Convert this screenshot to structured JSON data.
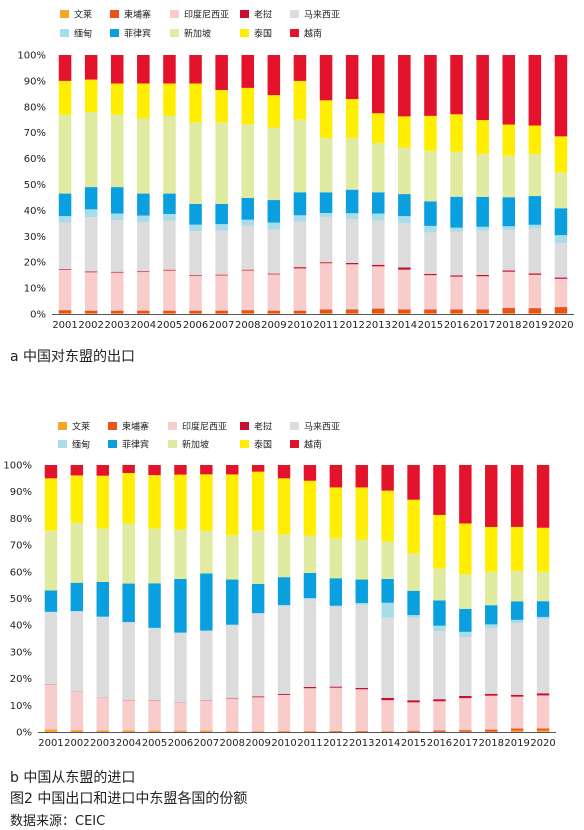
{
  "chart_data": [
    {
      "type": "bar",
      "stacked": true,
      "caption": "a 中国对东盟的出口",
      "categories": [
        "2001",
        "2002",
        "2003",
        "2004",
        "2005",
        "2006",
        "2007",
        "2008",
        "2009",
        "2010",
        "2011",
        "2012",
        "2013",
        "2014",
        "2015",
        "2016",
        "2017",
        "2018",
        "2019",
        "2020"
      ],
      "yticks": [
        "0%",
        "10%",
        "20%",
        "30%",
        "40%",
        "50%",
        "60%",
        "70%",
        "80%",
        "90%",
        "100%"
      ],
      "ylim": [
        0,
        100
      ],
      "legend_position": "top",
      "series": [
        {
          "name": "文莱",
          "color": "#f5a623",
          "values": [
            0.3,
            0.3,
            0.3,
            0.3,
            0.3,
            0.3,
            0.3,
            0.3,
            0.3,
            0.3,
            0.3,
            0.3,
            0.3,
            0.3,
            0.3,
            0.3,
            0.3,
            0.3,
            0.3,
            0.3
          ]
        },
        {
          "name": "柬埔寨",
          "color": "#e8531c",
          "values": [
            1.2,
            1.0,
            1.0,
            1.0,
            1.0,
            1.0,
            1.0,
            1.2,
            1.0,
            1.0,
            1.5,
            1.5,
            1.8,
            1.5,
            1.5,
            1.5,
            1.5,
            2.0,
            2.0,
            2.4
          ]
        },
        {
          "name": "印度尼西亚",
          "color": "#f9cccc",
          "values": [
            15.5,
            14.8,
            14.7,
            14.9,
            15.5,
            13.4,
            13.6,
            15.3,
            14.0,
            16.3,
            17.8,
            17.4,
            16.3,
            15.3,
            13.2,
            12.7,
            12.7,
            14.0,
            13.0,
            11.0
          ]
        },
        {
          "name": "老挝",
          "color": "#c8102e",
          "values": [
            0.3,
            0.3,
            0.3,
            0.3,
            0.3,
            0.3,
            0.3,
            0.3,
            0.3,
            0.5,
            0.4,
            0.5,
            0.6,
            0.9,
            0.5,
            0.5,
            0.5,
            0.5,
            0.5,
            0.5
          ]
        },
        {
          "name": "马来西亚",
          "color": "#dcdcdc",
          "values": [
            18.0,
            21.0,
            20.0,
            19.0,
            19.0,
            17.0,
            17.0,
            17.0,
            17.0,
            17.5,
            17.5,
            17.0,
            17.0,
            17.0,
            16.0,
            17.0,
            17.0,
            15.5,
            17.5,
            13.5
          ]
        },
        {
          "name": "缅甸",
          "color": "#a8dce8",
          "values": [
            2.5,
            3.0,
            2.5,
            2.5,
            2.5,
            2.5,
            2.5,
            2.3,
            2.7,
            2.5,
            1.5,
            2.2,
            2.8,
            2.8,
            2.5,
            1.5,
            1.5,
            1.5,
            1.5,
            3.0
          ]
        },
        {
          "name": "菲律宾",
          "color": "#0aa0e0",
          "values": [
            8.7,
            8.6,
            10.2,
            8.5,
            7.9,
            8.0,
            7.8,
            8.4,
            8.7,
            8.9,
            8.0,
            9.1,
            8.2,
            8.5,
            9.5,
            12.0,
            11.5,
            11.2,
            11.2,
            10.5
          ]
        },
        {
          "name": "新加坡",
          "color": "#e0eaa0",
          "values": [
            30.5,
            29.0,
            28.0,
            29.0,
            30.0,
            31.5,
            31.5,
            28.5,
            28.0,
            28.0,
            21.0,
            20.0,
            19.0,
            18.0,
            19.5,
            17.5,
            16.5,
            16.0,
            16.5,
            14.0
          ]
        },
        {
          "name": "泰国",
          "color": "#ffee00",
          "values": [
            13.0,
            12.5,
            12.0,
            13.5,
            12.5,
            15.0,
            12.5,
            14.0,
            12.5,
            15.0,
            14.5,
            15.0,
            11.5,
            12.0,
            13.5,
            14.5,
            13.0,
            12.0,
            11.0,
            14.0
          ]
        },
        {
          "name": "越南",
          "color": "#e2132a",
          "values": [
            10.0,
            9.5,
            11.0,
            11.0,
            11.0,
            11.0,
            13.5,
            12.7,
            15.5,
            10.0,
            17.5,
            17.0,
            22.5,
            23.7,
            23.5,
            23.0,
            25.0,
            26.8,
            27.5,
            31.7
          ]
        }
      ]
    },
    {
      "type": "bar",
      "stacked": true,
      "caption": "b 中国从东盟的进口",
      "categories": [
        "2001",
        "2002",
        "2003",
        "2004",
        "2005",
        "2006",
        "2007",
        "2008",
        "2009",
        "2010",
        "2011",
        "2012",
        "2013",
        "2014",
        "2015",
        "2016",
        "2017",
        "2018",
        "2019",
        "2020"
      ],
      "yticks": [
        "0%",
        "10%",
        "20%",
        "30%",
        "40%",
        "50%",
        "60%",
        "70%",
        "80%",
        "90%",
        "100%"
      ],
      "ylim": [
        0,
        100
      ],
      "legend_position": "top",
      "series": [
        {
          "name": "文莱",
          "color": "#f5a623",
          "values": [
            0.8,
            0.6,
            0.5,
            0.5,
            0.4,
            0.4,
            0.4,
            0.2,
            0.2,
            0.3,
            0.3,
            0.2,
            0.2,
            0.1,
            0.1,
            0.1,
            0.2,
            0.2,
            0.6,
            0.6
          ]
        },
        {
          "name": "柬埔寨",
          "color": "#e8531c",
          "values": [
            0.1,
            0.1,
            0.1,
            0.1,
            0.1,
            0.1,
            0.1,
            0.1,
            0.1,
            0.1,
            0.1,
            0.2,
            0.2,
            0.2,
            0.4,
            0.5,
            0.5,
            0.7,
            0.7,
            0.7
          ]
        },
        {
          "name": "印度尼西亚",
          "color": "#f9cccc",
          "values": [
            16.8,
            14.3,
            12.3,
            11.3,
            11.2,
            10.5,
            11.2,
            12.2,
            12.7,
            13.5,
            16.0,
            16.2,
            15.6,
            11.6,
            10.6,
            10.9,
            12.0,
            12.7,
            12.0,
            12.4
          ]
        },
        {
          "name": "老挝",
          "color": "#c8102e",
          "values": [
            0.1,
            0.1,
            0.1,
            0.1,
            0.1,
            0.1,
            0.1,
            0.2,
            0.3,
            0.4,
            0.5,
            0.4,
            0.5,
            0.9,
            0.8,
            0.8,
            0.8,
            0.7,
            0.7,
            0.8
          ]
        },
        {
          "name": "马来西亚",
          "color": "#dcdcdc",
          "values": [
            27.0,
            30.0,
            30.0,
            29.0,
            27.0,
            26.0,
            26.0,
            27.0,
            31.0,
            33.0,
            33.0,
            30.0,
            31.0,
            30.0,
            31.0,
            25.5,
            22.0,
            24.5,
            27.0,
            28.0
          ]
        },
        {
          "name": "缅甸",
          "color": "#a8dce8",
          "values": [
            0.2,
            0.2,
            0.2,
            0.2,
            0.2,
            0.2,
            0.2,
            0.2,
            0.2,
            0.2,
            0.2,
            0.3,
            0.8,
            5.6,
            0.9,
            2.0,
            2.0,
            1.5,
            1.2,
            0.6
          ]
        },
        {
          "name": "菲律宾",
          "color": "#0aa0e0",
          "values": [
            8.0,
            10.6,
            13.0,
            14.4,
            16.7,
            20.1,
            21.4,
            16.8,
            11.0,
            10.5,
            9.5,
            10.3,
            8.8,
            8.9,
            9.1,
            9.5,
            8.6,
            7.2,
            7.0,
            5.9
          ]
        },
        {
          "name": "新加坡",
          "color": "#e0eaa0",
          "values": [
            22.5,
            22.5,
            20.0,
            22.5,
            20.5,
            18.5,
            16.0,
            16.5,
            20.0,
            16.0,
            14.0,
            15.0,
            15.0,
            14.0,
            14.0,
            12.0,
            13.0,
            12.5,
            11.5,
            11.0
          ]
        },
        {
          "name": "泰国",
          "color": "#ffee00",
          "values": [
            19.5,
            17.7,
            19.8,
            18.9,
            20.0,
            20.6,
            21.1,
            22.6,
            22.0,
            21.0,
            20.5,
            19.0,
            19.5,
            19.1,
            20.1,
            20.0,
            19.0,
            16.8,
            16.5,
            16.5
          ]
        },
        {
          "name": "越南",
          "color": "#e2132a",
          "values": [
            5.0,
            3.9,
            4.0,
            3.0,
            3.8,
            3.6,
            3.5,
            3.5,
            2.5,
            5.0,
            5.9,
            8.4,
            8.4,
            9.6,
            13.0,
            18.7,
            21.9,
            23.2,
            23.3,
            23.5
          ]
        }
      ]
    }
  ],
  "captions": {
    "a": "a 中国对东盟的出口",
    "b": "b 中国从东盟的进口",
    "figure": "图2  中国出口和进口中东盟各国的份额",
    "source": "数据来源：CEIC"
  }
}
